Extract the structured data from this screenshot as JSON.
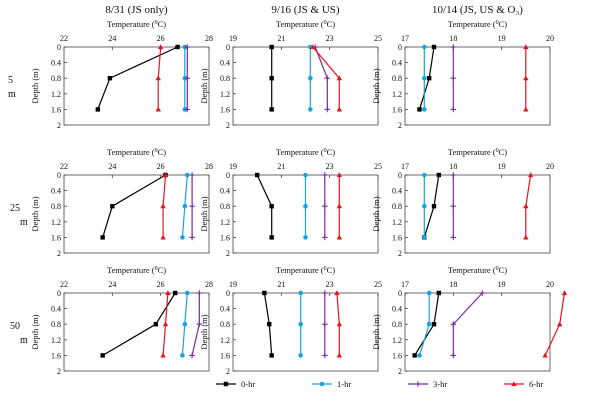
{
  "figure": {
    "column_titles": [
      "8/31 (JS only)",
      "9/16 (JS & US)",
      "10/14 (JS, US & O3)"
    ],
    "row_labels": [
      [
        "5",
        "m"
      ],
      [
        "25",
        "m"
      ],
      [
        "50",
        "m"
      ]
    ],
    "legend": [
      "0-hr",
      "1-hr",
      "3-hr",
      "6-hr"
    ]
  },
  "chart_data": {
    "type": "line",
    "orientation": "vertical-profile",
    "xlabel": "Temperature (°C)",
    "ylabel": "Depth (m)",
    "ylim": [
      0,
      2
    ],
    "y_inverted": true,
    "y_ticks": [
      "0",
      "0.4",
      "0.8",
      "1.2",
      "1.6",
      "2"
    ],
    "depths": [
      0,
      0.8,
      1.6
    ],
    "series_colors": {
      "0-hr": "#000000",
      "1-hr": "#1aa3e0",
      "3-hr": "#7a2a9e",
      "6-hr": "#e8141b"
    },
    "series_markers": {
      "0-hr": "square",
      "1-hr": "circle",
      "3-hr": "cross",
      "6-hr": "triangle"
    },
    "columns": [
      {
        "title": "8/31 (JS only)",
        "xlim": [
          22,
          28
        ],
        "x_ticks": [
          "22",
          "24",
          "26",
          "28"
        ]
      },
      {
        "title": "9/16 (JS & US)",
        "xlim": [
          19,
          25
        ],
        "x_ticks": [
          "19",
          "21",
          "23",
          "25"
        ]
      },
      {
        "title": "10/14 (JS, US & O3)",
        "xlim": [
          17,
          20
        ],
        "x_ticks": [
          "17",
          "18",
          "19",
          "20"
        ]
      }
    ],
    "panels": [
      {
        "row": "5 m",
        "column": "8/31 (JS only)",
        "series": [
          {
            "name": "0-hr",
            "temps": [
              26.7,
              23.9,
              23.4
            ]
          },
          {
            "name": "1-hr",
            "temps": [
              27.0,
              27.0,
              27.0
            ]
          },
          {
            "name": "3-hr",
            "temps": [
              27.1,
              27.1,
              27.1
            ]
          },
          {
            "name": "6-hr",
            "temps": [
              26.0,
              25.9,
              25.9
            ]
          }
        ]
      },
      {
        "row": "5 m",
        "column": "9/16 (JS & US)",
        "series": [
          {
            "name": "0-hr",
            "temps": [
              20.6,
              20.6,
              20.6
            ]
          },
          {
            "name": "1-hr",
            "temps": [
              22.2,
              22.2,
              22.2
            ]
          },
          {
            "name": "3-hr",
            "temps": [
              22.4,
              22.9,
              22.9
            ]
          },
          {
            "name": "6-hr",
            "temps": [
              22.3,
              23.4,
              23.4
            ]
          }
        ]
      },
      {
        "row": "5 m",
        "column": "10/14 (JS, US & O3)",
        "series": [
          {
            "name": "0-hr",
            "temps": [
              17.6,
              17.5,
              17.3
            ]
          },
          {
            "name": "1-hr",
            "temps": [
              17.4,
              17.4,
              17.4
            ]
          },
          {
            "name": "3-hr",
            "temps": [
              18.0,
              18.0,
              18.0
            ]
          },
          {
            "name": "6-hr",
            "temps": [
              19.5,
              19.5,
              19.5
            ]
          }
        ]
      },
      {
        "row": "25 m",
        "column": "8/31 (JS only)",
        "series": [
          {
            "name": "0-hr",
            "temps": [
              26.2,
              24.0,
              23.6
            ]
          },
          {
            "name": "1-hr",
            "temps": [
              27.1,
              27.0,
              26.9
            ]
          },
          {
            "name": "3-hr",
            "temps": [
              27.3,
              27.3,
              27.3
            ]
          },
          {
            "name": "6-hr",
            "temps": [
              26.2,
              26.1,
              26.1
            ]
          }
        ]
      },
      {
        "row": "25 m",
        "column": "9/16 (JS & US)",
        "series": [
          {
            "name": "0-hr",
            "temps": [
              20.0,
              20.6,
              20.6
            ]
          },
          {
            "name": "1-hr",
            "temps": [
              22.0,
              22.0,
              22.0
            ]
          },
          {
            "name": "3-hr",
            "temps": [
              22.8,
              22.8,
              22.8
            ]
          },
          {
            "name": "6-hr",
            "temps": [
              23.4,
              23.4,
              23.4
            ]
          }
        ]
      },
      {
        "row": "25 m",
        "column": "10/14 (JS, US & O3)",
        "series": [
          {
            "name": "0-hr",
            "temps": [
              17.7,
              17.6,
              17.4
            ]
          },
          {
            "name": "1-hr",
            "temps": [
              17.4,
              17.4,
              17.4
            ]
          },
          {
            "name": "3-hr",
            "temps": [
              18.0,
              18.0,
              18.0
            ]
          },
          {
            "name": "6-hr",
            "temps": [
              19.6,
              19.5,
              19.5
            ]
          }
        ]
      },
      {
        "row": "50 m",
        "column": "8/31 (JS only)",
        "series": [
          {
            "name": "0-hr",
            "temps": [
              26.6,
              25.8,
              23.6
            ]
          },
          {
            "name": "1-hr",
            "temps": [
              27.1,
              27.0,
              26.9
            ]
          },
          {
            "name": "3-hr",
            "temps": [
              27.6,
              27.6,
              27.3
            ]
          },
          {
            "name": "6-hr",
            "temps": [
              26.3,
              26.2,
              26.1
            ]
          }
        ]
      },
      {
        "row": "50 m",
        "column": "9/16 (JS & US)",
        "series": [
          {
            "name": "0-hr",
            "temps": [
              20.3,
              20.5,
              20.6
            ]
          },
          {
            "name": "1-hr",
            "temps": [
              21.8,
              21.8,
              21.8
            ]
          },
          {
            "name": "3-hr",
            "temps": [
              22.8,
              22.8,
              22.8
            ]
          },
          {
            "name": "6-hr",
            "temps": [
              23.3,
              23.4,
              23.4
            ]
          }
        ]
      },
      {
        "row": "50 m",
        "column": "10/14 (JS, US & O3)",
        "series": [
          {
            "name": "0-hr",
            "temps": [
              17.7,
              17.6,
              17.2
            ]
          },
          {
            "name": "1-hr",
            "temps": [
              17.5,
              17.5,
              17.3
            ]
          },
          {
            "name": "3-hr",
            "temps": [
              18.6,
              18.0,
              18.0
            ]
          },
          {
            "name": "6-hr",
            "temps": [
              20.3,
              20.2,
              19.9
            ]
          }
        ]
      }
    ]
  }
}
